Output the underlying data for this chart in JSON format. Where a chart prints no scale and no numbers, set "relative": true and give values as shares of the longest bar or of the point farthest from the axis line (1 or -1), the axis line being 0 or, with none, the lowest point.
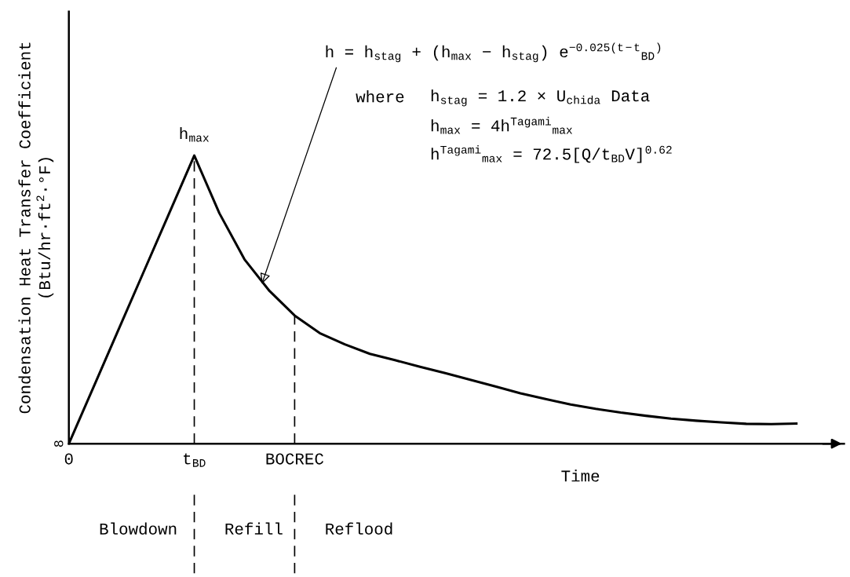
{
  "chart_data": {
    "type": "line",
    "relative": true,
    "ylabel": "Condensation Heat Transfer Coefficient\n(Btu/hr·ft$^{2}$·°F)",
    "xlabel": "Time",
    "categories": [
      "0",
      null,
      null,
      null,
      null,
      "t$_{BD}$",
      null,
      null,
      null,
      "BOCREC",
      null,
      null,
      null,
      null,
      null,
      null,
      null,
      null,
      null,
      null,
      null,
      null,
      null,
      null,
      null,
      null,
      null,
      null,
      null,
      null
    ],
    "series": [
      {
        "color": "#000000",
        "values": [
          0,
          0.2,
          0.4,
          0.6,
          0.8,
          1.0,
          0.8,
          0.64,
          0.53,
          0.445,
          0.384,
          0.345,
          0.312,
          0.29,
          0.267,
          0.245,
          0.222,
          0.199,
          0.175,
          0.155,
          0.136,
          0.121,
          0.108,
          0.097,
          0.087,
          0.08,
          0.074,
          0.069,
          0.068,
          0.07
        ]
      }
    ],
    "ref_lines": [
      {
        "axis": "x",
        "value": "t$_{BD}$",
        "line_style": "dashed",
        "color": "#000000"
      },
      {
        "axis": "x",
        "value": "BOCREC",
        "line_style": "dashed",
        "color": "#000000"
      }
    ],
    "annotations": [
      {
        "text": "h$_{max}$",
        "x": "t$_{BD}$",
        "y": 1.0
      },
      "h = h$_{stag}$ + (h$_{max}$ − h$_{stag}$) e$^{−0.025(t−t}$$_{BD}$$^{)}$",
      "where",
      "h$_{stag}$ = 1.2 × U$_{chida}$ Data",
      "h$_{max}$ = 4h$^{Tagami}$$_{max}$",
      "h$^{Tagami}$$_{max}$ = 72.5[Q/t$_{BD}$V]$^{0.62}$",
      "Blowdown",
      "Refill",
      "Reflood",
      {
        "text": "8",
        "x": "0",
        "y": 0
      }
    ],
    "line_style": "solid",
    "marker": "none"
  }
}
